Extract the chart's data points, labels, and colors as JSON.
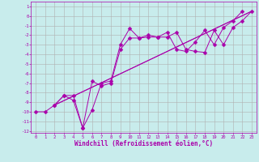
{
  "background_color": "#c8ecec",
  "grid_color": "#b0b0b0",
  "line_color": "#aa00aa",
  "xlim": [
    -0.5,
    23.5
  ],
  "ylim": [
    -12.2,
    1.5
  ],
  "xlabel": "Windchill (Refroidissement éolien,°C)",
  "xticks": [
    0,
    1,
    2,
    3,
    4,
    5,
    6,
    7,
    8,
    9,
    10,
    11,
    12,
    13,
    14,
    15,
    16,
    17,
    18,
    19,
    20,
    21,
    22,
    23
  ],
  "yticks": [
    1,
    0,
    -1,
    -2,
    -3,
    -4,
    -5,
    -6,
    -7,
    -8,
    -9,
    -10,
    -11,
    -12
  ],
  "line1_x": [
    0,
    1,
    2,
    3,
    4,
    5,
    6,
    7,
    8,
    9,
    10,
    11,
    12,
    13,
    14,
    15,
    16,
    17,
    18,
    19,
    20,
    21,
    22,
    23
  ],
  "line1_y": [
    -10.0,
    -10.0,
    -9.3,
    -8.3,
    -8.3,
    -11.7,
    -9.8,
    -7.0,
    -6.8,
    -3.0,
    -1.3,
    -2.3,
    -2.0,
    -2.2,
    -2.2,
    -1.7,
    -3.5,
    -3.7,
    -3.8,
    -1.5,
    -3.0,
    -1.2,
    -0.5,
    0.5
  ],
  "line2_x": [
    2,
    3,
    4,
    5,
    6,
    7,
    8,
    9,
    10,
    11,
    12,
    13,
    14,
    15,
    16,
    17,
    18,
    19,
    20,
    21,
    22
  ],
  "line2_y": [
    -9.3,
    -8.3,
    -8.8,
    -11.7,
    -6.8,
    -7.3,
    -7.0,
    -3.5,
    -2.3,
    -2.3,
    -2.2,
    -2.2,
    -1.7,
    -3.5,
    -3.7,
    -2.7,
    -1.5,
    -3.0,
    -1.2,
    -0.5,
    0.5
  ],
  "line3_x": [
    2,
    23
  ],
  "line3_y": [
    -9.3,
    0.5
  ],
  "line4_x": [
    2,
    23
  ],
  "line4_y": [
    -9.3,
    0.5
  ],
  "marker_size": 2.5,
  "linewidth": 0.7,
  "xlabel_fontsize": 5.5,
  "tick_fontsize": 4.0
}
